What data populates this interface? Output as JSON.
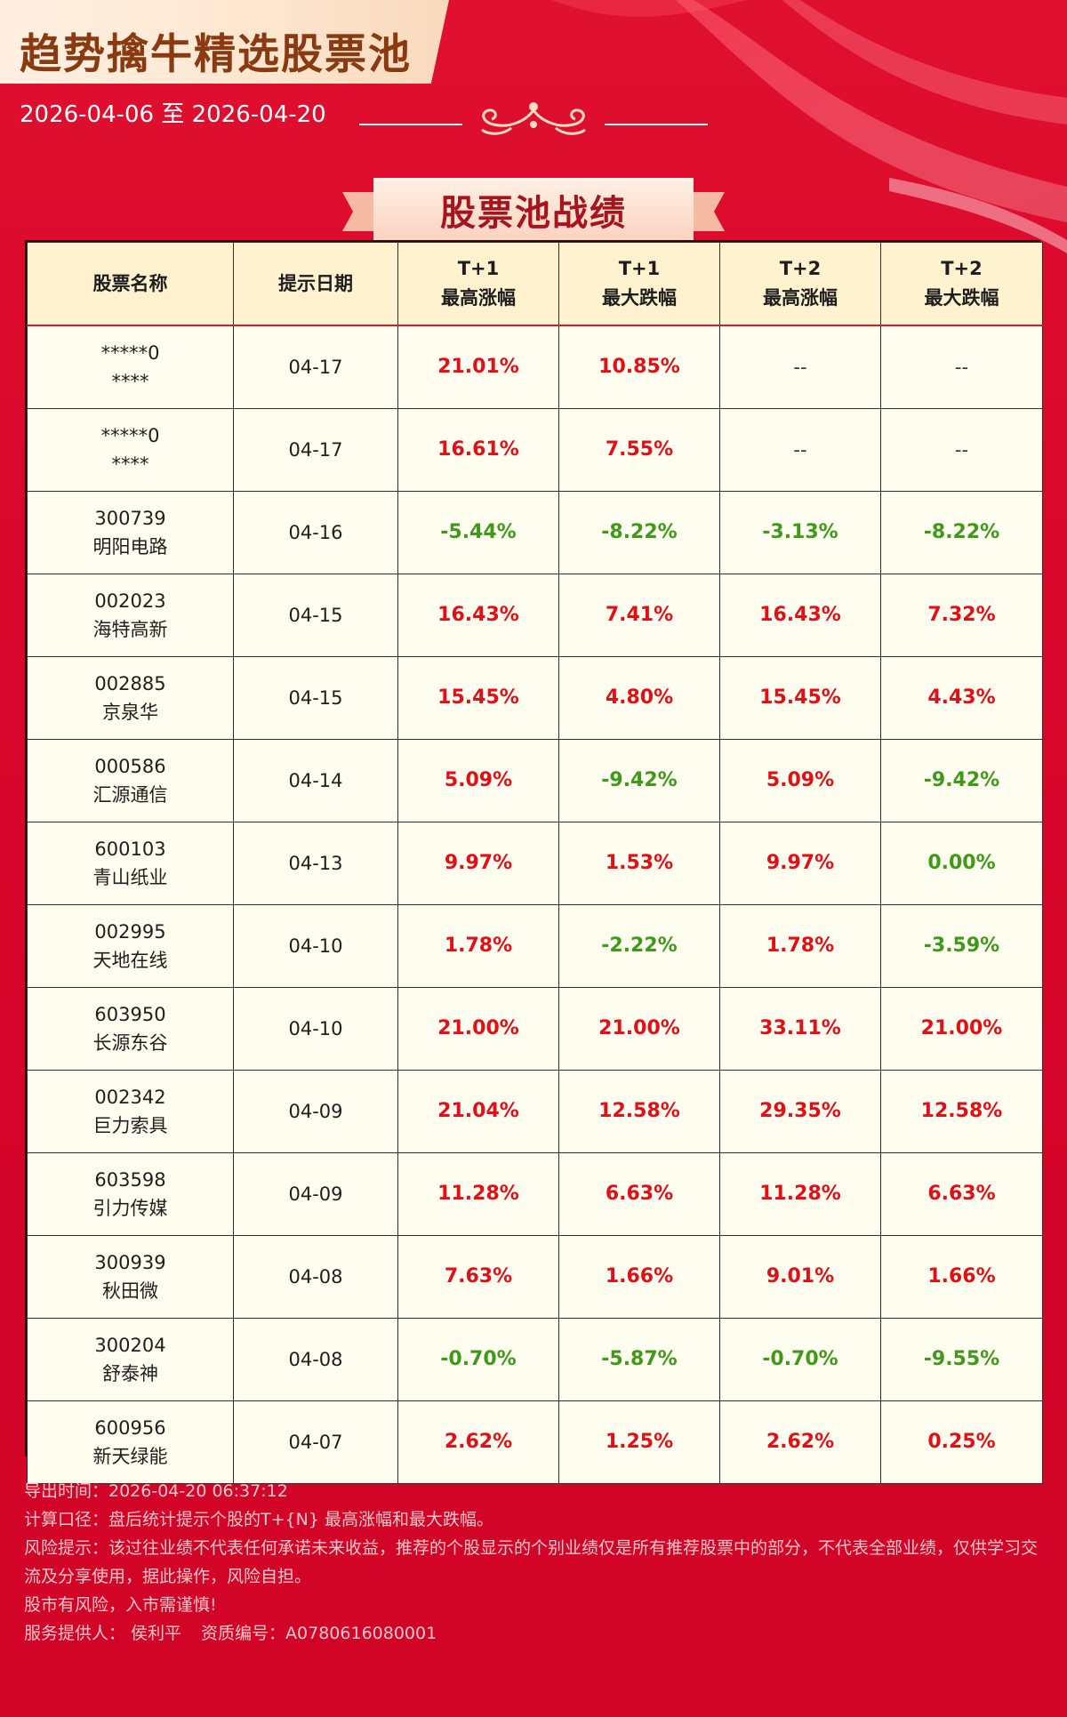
{
  "header": {
    "title": "趋势擒牛精选股票池",
    "date_range": "2026-04-06 至 2026-04-20",
    "section_title": "股票池战绩"
  },
  "colors": {
    "background": "#d9062c",
    "title_banner": "#fde6cf",
    "title_text": "#8a3a10",
    "header_row": "#fff2cf",
    "table_body": "#fffdf0",
    "positive": "#e30f17",
    "negative": "#3e9a18"
  },
  "table": {
    "headers": [
      {
        "line1": "股票名称",
        "line2": ""
      },
      {
        "line1": "提示日期",
        "line2": ""
      },
      {
        "line1": "T+1",
        "line2": "最高涨幅"
      },
      {
        "line1": "T+1",
        "line2": "最大跌幅"
      },
      {
        "line1": "T+2",
        "line2": "最高涨幅"
      },
      {
        "line1": "T+2",
        "line2": "最大跌幅"
      }
    ],
    "rows": [
      {
        "code": "*****0",
        "name": "****",
        "date": "04-17",
        "t1_high": "21.01%",
        "t1_low": "10.85%",
        "t2_high": "--",
        "t2_low": "--"
      },
      {
        "code": "*****0",
        "name": "****",
        "date": "04-17",
        "t1_high": "16.61%",
        "t1_low": "7.55%",
        "t2_high": "--",
        "t2_low": "--"
      },
      {
        "code": "300739",
        "name": "明阳电路",
        "date": "04-16",
        "t1_high": "-5.44%",
        "t1_low": "-8.22%",
        "t2_high": "-3.13%",
        "t2_low": "-8.22%"
      },
      {
        "code": "002023",
        "name": "海特高新",
        "date": "04-15",
        "t1_high": "16.43%",
        "t1_low": "7.41%",
        "t2_high": "16.43%",
        "t2_low": "7.32%"
      },
      {
        "code": "002885",
        "name": "京泉华",
        "date": "04-15",
        "t1_high": "15.45%",
        "t1_low": "4.80%",
        "t2_high": "15.45%",
        "t2_low": "4.43%"
      },
      {
        "code": "000586",
        "name": "汇源通信",
        "date": "04-14",
        "t1_high": "5.09%",
        "t1_low": "-9.42%",
        "t2_high": "5.09%",
        "t2_low": "-9.42%"
      },
      {
        "code": "600103",
        "name": "青山纸业",
        "date": "04-13",
        "t1_high": "9.97%",
        "t1_low": "1.53%",
        "t2_high": "9.97%",
        "t2_low": "0.00%"
      },
      {
        "code": "002995",
        "name": "天地在线",
        "date": "04-10",
        "t1_high": "1.78%",
        "t1_low": "-2.22%",
        "t2_high": "1.78%",
        "t2_low": "-3.59%"
      },
      {
        "code": "603950",
        "name": "长源东谷",
        "date": "04-10",
        "t1_high": "21.00%",
        "t1_low": "21.00%",
        "t2_high": "33.11%",
        "t2_low": "21.00%"
      },
      {
        "code": "002342",
        "name": "巨力索具",
        "date": "04-09",
        "t1_high": "21.04%",
        "t1_low": "12.58%",
        "t2_high": "29.35%",
        "t2_low": "12.58%"
      },
      {
        "code": "603598",
        "name": "引力传媒",
        "date": "04-09",
        "t1_high": "11.28%",
        "t1_low": "6.63%",
        "t2_high": "11.28%",
        "t2_low": "6.63%"
      },
      {
        "code": "300939",
        "name": "秋田微",
        "date": "04-08",
        "t1_high": "7.63%",
        "t1_low": "1.66%",
        "t2_high": "9.01%",
        "t2_low": "1.66%"
      },
      {
        "code": "300204",
        "name": "舒泰神",
        "date": "04-08",
        "t1_high": "-0.70%",
        "t1_low": "-5.87%",
        "t2_high": "-0.70%",
        "t2_low": "-9.55%"
      },
      {
        "code": "600956",
        "name": "新天绿能",
        "date": "04-07",
        "t1_high": "2.62%",
        "t1_low": "1.25%",
        "t2_high": "2.62%",
        "t2_low": "0.25%"
      }
    ]
  },
  "footer": {
    "export_time": "导出时间：2026-04-20 06:37:12",
    "calc_method": "计算口径：盘后统计提示个股的T+{N} 最高涨幅和最大跌幅。",
    "risk_notice": "风险提示：该过往业绩不代表任何承诺未来收益，推荐的个股显示的个别业绩仅是所有推荐股票中的部分，不代表全部业绩，仅供学习交流及分享使用，据此操作，风险自担。",
    "market_warning": "股市有风险，入市需谨慎!",
    "provider": "服务提供人：  侯利平",
    "license": "资质编号：A0780616080001"
  }
}
